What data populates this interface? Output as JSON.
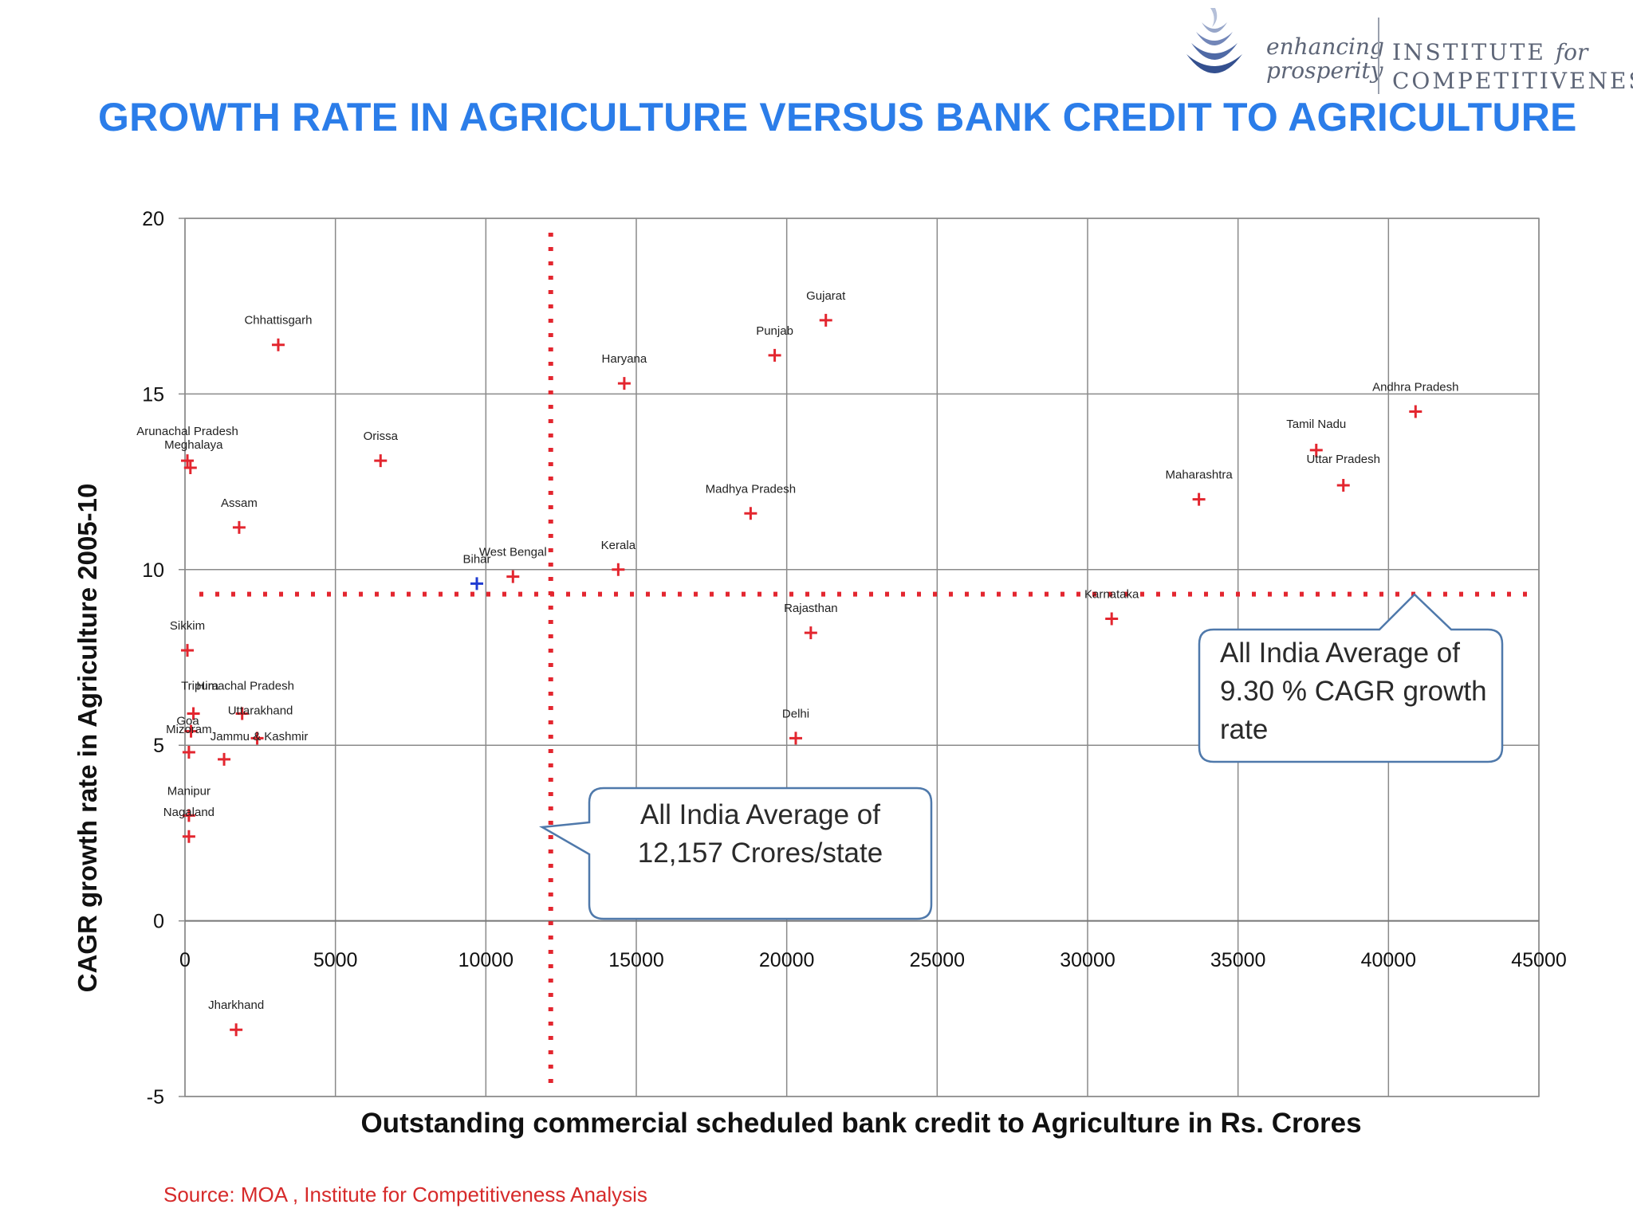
{
  "header": {
    "title": "GROWTH RATE IN AGRICULTURE VERSUS BANK CREDIT TO AGRICULTURE",
    "logo_tagline_1": "enhancing",
    "logo_tagline_2": "prosperity",
    "logo_institute_1": "INSTITUTE",
    "logo_institute_for": "for",
    "logo_institute_2": "COMPETITIVENESS"
  },
  "footer": {
    "source": "Source: MOA , Institute for Competitiveness Analysis"
  },
  "colors": {
    "marker": "#e3262f",
    "highlight": "#1f3bd1",
    "title": "#2b7de9",
    "callout_border": "#4f79ab"
  },
  "callouts": {
    "credit_avg": {
      "line1": "All India Average of",
      "line2": "12,157 Crores/state"
    },
    "growth_avg": {
      "line1": "All India Average of",
      "line2": "9.30 % CAGR growth",
      "line3": "rate"
    }
  },
  "chart_data": {
    "type": "scatter",
    "xlabel": "Outstanding commercial scheduled bank credit to Agriculture in Rs. Crores",
    "ylabel": "CAGR growth rate in Agriculture 2005-10",
    "xlim": [
      0,
      45000
    ],
    "ylim": [
      -5,
      20
    ],
    "xticks": [
      0,
      5000,
      10000,
      15000,
      20000,
      25000,
      30000,
      35000,
      40000,
      45000
    ],
    "yticks": [
      -5,
      0,
      5,
      10,
      15,
      20
    ],
    "grid": true,
    "reference_lines": {
      "x": 12157,
      "y": 9.3
    },
    "points": [
      {
        "label": "Chhattisgarh",
        "x": 3100,
        "y": 16.4
      },
      {
        "label": "Gujarat",
        "x": 21300,
        "y": 17.1
      },
      {
        "label": "Punjab",
        "x": 19600,
        "y": 16.1
      },
      {
        "label": "Haryana",
        "x": 14600,
        "y": 15.3
      },
      {
        "label": "Andhra Pradesh",
        "x": 40900,
        "y": 14.5
      },
      {
        "label": "Tamil Nadu",
        "x": 37600,
        "y": 13.4
      },
      {
        "label": "Uttar Pradesh",
        "x": 38500,
        "y": 12.4
      },
      {
        "label": "Maharashtra",
        "x": 33700,
        "y": 12.0
      },
      {
        "label": "Arunachal Pradesh",
        "x": 80,
        "y": 13.1
      },
      {
        "label": "Meghalaya",
        "x": 180,
        "y": 12.9
      },
      {
        "label": "Orissa",
        "x": 6500,
        "y": 13.1
      },
      {
        "label": "Assam",
        "x": 1800,
        "y": 11.2
      },
      {
        "label": "Madhya Pradesh",
        "x": 18800,
        "y": 11.6
      },
      {
        "label": "Kerala",
        "x": 14400,
        "y": 10.0
      },
      {
        "label": "West Bengal",
        "x": 10900,
        "y": 9.8
      },
      {
        "label": "Bihar",
        "x": 9700,
        "y": 9.6,
        "highlight": true
      },
      {
        "label": "Karnataka",
        "x": 30800,
        "y": 8.6
      },
      {
        "label": "Rajasthan",
        "x": 20800,
        "y": 8.2
      },
      {
        "label": "Sikkim",
        "x": 80,
        "y": 7.7
      },
      {
        "label": "Tripura",
        "x": 280,
        "y": 5.9
      },
      {
        "label": "Himachal Pradesh",
        "x": 1900,
        "y": 5.9
      },
      {
        "label": "Goa",
        "x": 200,
        "y": 5.4
      },
      {
        "label": "Uttarakhand",
        "x": 2400,
        "y": 5.2
      },
      {
        "label": "Mizoram",
        "x": 130,
        "y": 4.8
      },
      {
        "label": "Jammu & Kashmir",
        "x": 1300,
        "y": 4.6
      },
      {
        "label": "Delhi",
        "x": 20300,
        "y": 5.2
      },
      {
        "label": "Manipur",
        "x": 130,
        "y": 3.0
      },
      {
        "label": "Nagaland",
        "x": 130,
        "y": 2.4
      },
      {
        "label": "Jharkhand",
        "x": 1700,
        "y": -3.1
      }
    ]
  }
}
